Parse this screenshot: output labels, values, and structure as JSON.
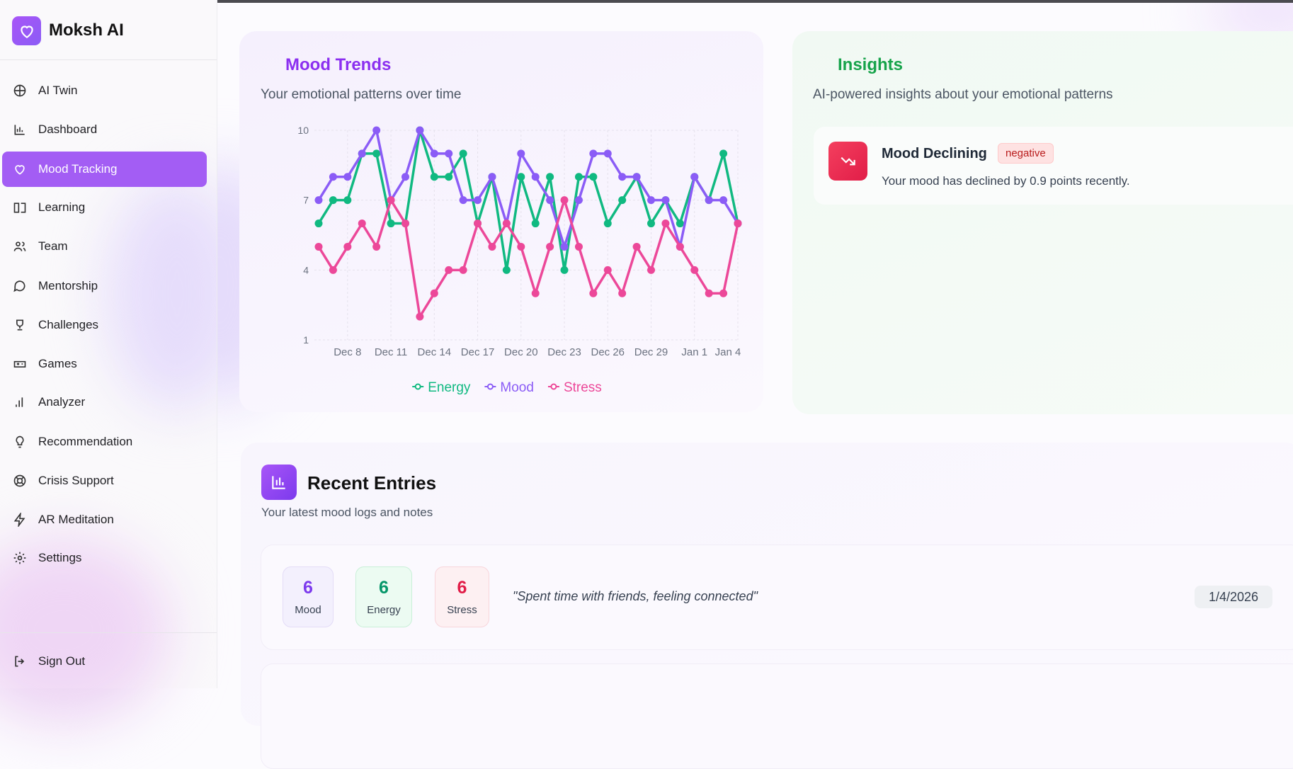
{
  "sidebar": {
    "brand": "Moksh AI",
    "nav": [
      "AI Twin",
      "Dashboard",
      "Mood Tracking",
      "Learning",
      "Team",
      "Mentorship",
      "Challenges",
      "Games",
      "Analyzer",
      "Recommendation",
      "Crisis Support",
      "AR Meditation",
      "Settings"
    ],
    "sign_out": "Sign Out"
  },
  "chart_data": {
    "type": "line",
    "title": "Mood Trends",
    "subtitle": "Your emotional patterns over time",
    "categories": [
      null,
      null,
      "Dec 8",
      null,
      null,
      "Dec 11",
      null,
      null,
      "Dec 14",
      null,
      null,
      "Dec 17",
      null,
      null,
      "Dec 20",
      null,
      null,
      "Dec 23",
      null,
      null,
      "Dec 26",
      null,
      null,
      "Dec 29",
      null,
      null,
      "Jan 1",
      null,
      null,
      "Jan 4"
    ],
    "series": [
      {
        "name": "Energy",
        "color": "#10b981",
        "values": [
          6,
          7,
          7,
          9,
          9,
          6,
          6,
          10,
          8,
          8,
          9,
          6,
          8,
          4,
          8,
          6,
          8,
          4,
          8,
          8,
          6,
          7,
          8,
          6,
          7,
          6,
          8,
          7,
          9,
          6
        ]
      },
      {
        "name": "Mood",
        "color": "#8b5cf6",
        "values": [
          7,
          8,
          8,
          9,
          10,
          7,
          8,
          10,
          9,
          9,
          7,
          7,
          8,
          6,
          9,
          8,
          7,
          5,
          7,
          9,
          9,
          8,
          8,
          7,
          7,
          5,
          8,
          7,
          7,
          6
        ]
      },
      {
        "name": "Stress",
        "color": "#ec4899",
        "values": [
          5,
          4,
          5,
          6,
          5,
          7,
          6,
          2,
          3,
          4,
          4,
          6,
          5,
          6,
          5,
          3,
          5,
          7,
          5,
          3,
          4,
          3,
          5,
          4,
          6,
          5,
          4,
          3,
          3,
          6
        ]
      }
    ],
    "ylim": [
      1,
      10
    ],
    "yticks": [
      1,
      4,
      7,
      10
    ],
    "grid": true,
    "legend": "bottom"
  },
  "insights": {
    "title": "Insights",
    "subtitle": "AI-powered insights about your emotional patterns",
    "items": [
      {
        "title": "Mood Declining",
        "badge": "negative",
        "text": "Your mood has declined by 0.9 points recently."
      }
    ]
  },
  "recent": {
    "title": "Recent Entries",
    "subtitle": "Your latest mood logs and notes",
    "entries": [
      {
        "metrics": [
          {
            "label": "Mood",
            "value": 6
          },
          {
            "label": "Energy",
            "value": 6
          },
          {
            "label": "Stress",
            "value": 6
          }
        ],
        "note": "\"Spent time with friends, feeling connected\"",
        "date": "1/4/2026"
      }
    ]
  }
}
